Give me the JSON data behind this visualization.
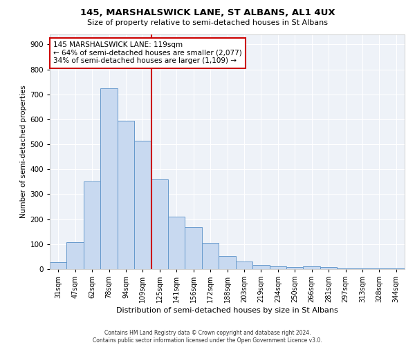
{
  "title": "145, MARSHALSWICK LANE, ST ALBANS, AL1 4UX",
  "subtitle": "Size of property relative to semi-detached houses in St Albans",
  "xlabel": "Distribution of semi-detached houses by size in St Albans",
  "ylabel": "Number of semi-detached properties",
  "categories": [
    "31sqm",
    "47sqm",
    "62sqm",
    "78sqm",
    "94sqm",
    "109sqm",
    "125sqm",
    "141sqm",
    "156sqm",
    "172sqm",
    "188sqm",
    "203sqm",
    "219sqm",
    "234sqm",
    "250sqm",
    "266sqm",
    "281sqm",
    "297sqm",
    "313sqm",
    "328sqm",
    "344sqm"
  ],
  "values": [
    28,
    107,
    350,
    725,
    595,
    515,
    360,
    210,
    168,
    105,
    53,
    30,
    16,
    10,
    8,
    10,
    8,
    4,
    4,
    4,
    4
  ],
  "bar_color": "#c8d9f0",
  "bar_edge_color": "#6699cc",
  "bar_edge_width": 0.7,
  "vline_x": 5.5,
  "vline_color": "#cc0000",
  "smaller_pct": "64%",
  "smaller_count": "2,077",
  "larger_pct": "34%",
  "larger_count": "1,109",
  "ylim": [
    0,
    940
  ],
  "yticks": [
    0,
    100,
    200,
    300,
    400,
    500,
    600,
    700,
    800,
    900
  ],
  "legend_box_color": "#cc0000",
  "bg_color": "#eef2f8",
  "grid_color": "#ffffff",
  "footer_line1": "Contains HM Land Registry data © Crown copyright and database right 2024.",
  "footer_line2": "Contains public sector information licensed under the Open Government Licence v3.0."
}
